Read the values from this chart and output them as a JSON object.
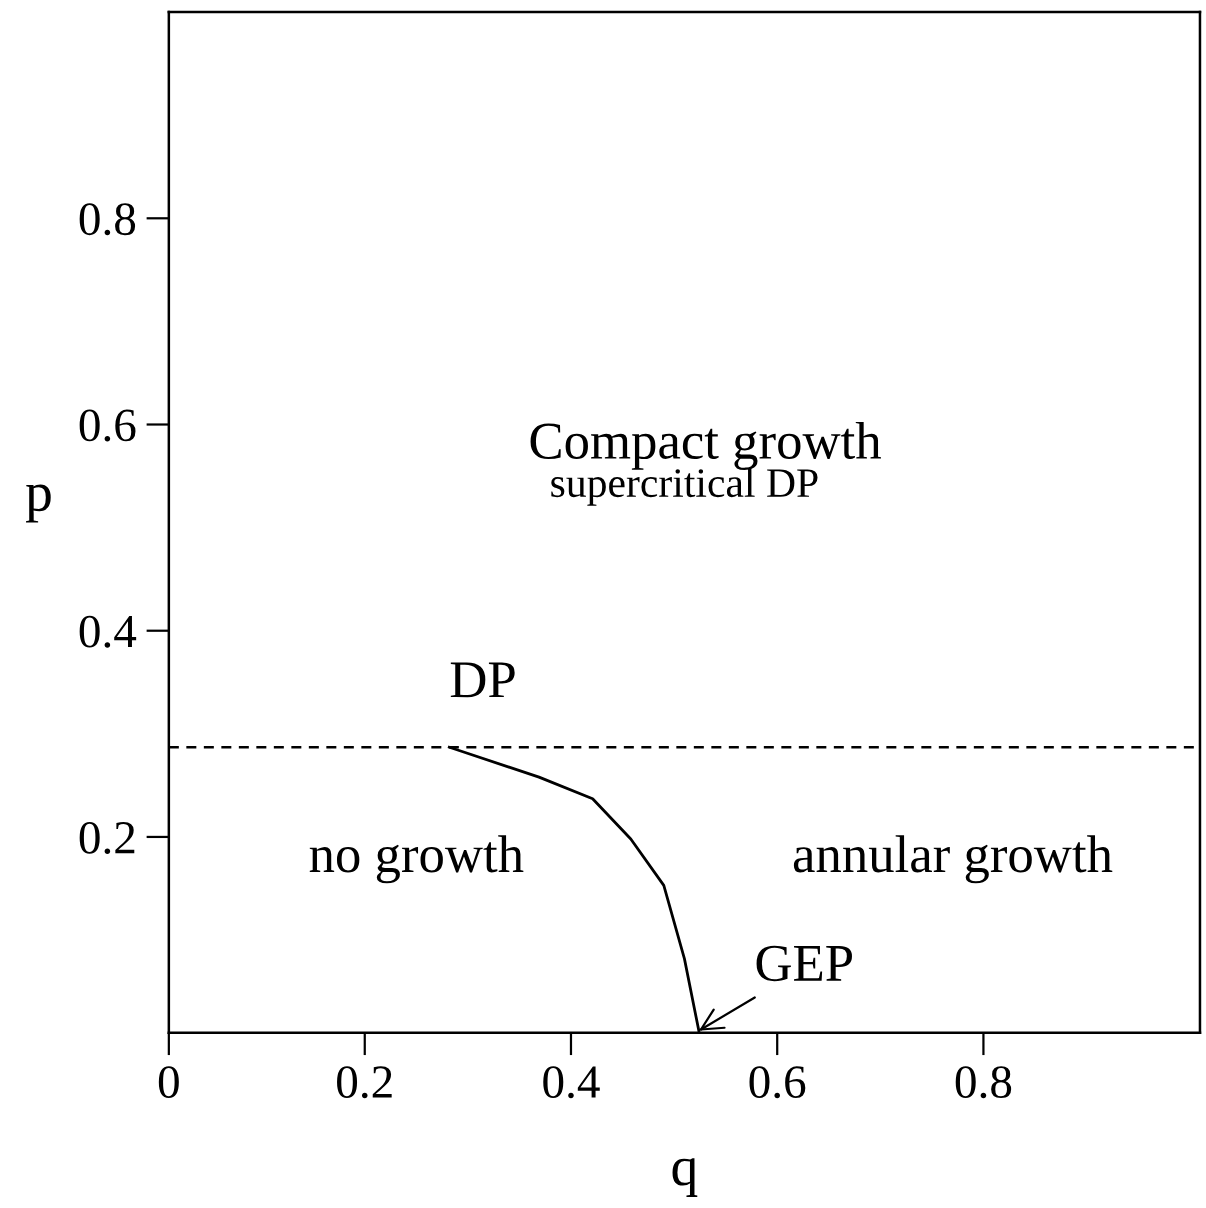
{
  "chart_data": {
    "type": "line",
    "xlabel": "q",
    "ylabel": "p",
    "x": [
      0.282,
      0.369,
      0.421,
      0.458,
      0.49,
      0.51,
      0.524
    ],
    "series": [
      {
        "color": "#000000",
        "values": [
          0.287,
          0.258,
          0.237,
          0.198,
          0.153,
          0.082,
          0.012
        ]
      }
    ],
    "xlim": [
      0.01,
      1.01
    ],
    "ylim": [
      0.01,
      1.0
    ],
    "xticks": [
      {
        "value": 0.01,
        "label": "0"
      },
      0.2,
      0.4,
      0.6,
      0.8
    ],
    "yticks": [
      0.2,
      0.4,
      0.6,
      0.8
    ],
    "ref_lines": [
      {
        "axis": "y",
        "value": 0.287,
        "color": "#000000",
        "line_style": "dashed"
      }
    ],
    "annotations": [
      "Compact growth",
      "supercritical DP",
      "no growth",
      "annular growth",
      {
        "text": "DP",
        "x": 0.282,
        "y": 0.287
      },
      {
        "text": "GEP",
        "x": 0.524,
        "y": 0.012
      }
    ],
    "grid": false,
    "legend": false,
    "marker": "none",
    "line_style": "solid"
  }
}
